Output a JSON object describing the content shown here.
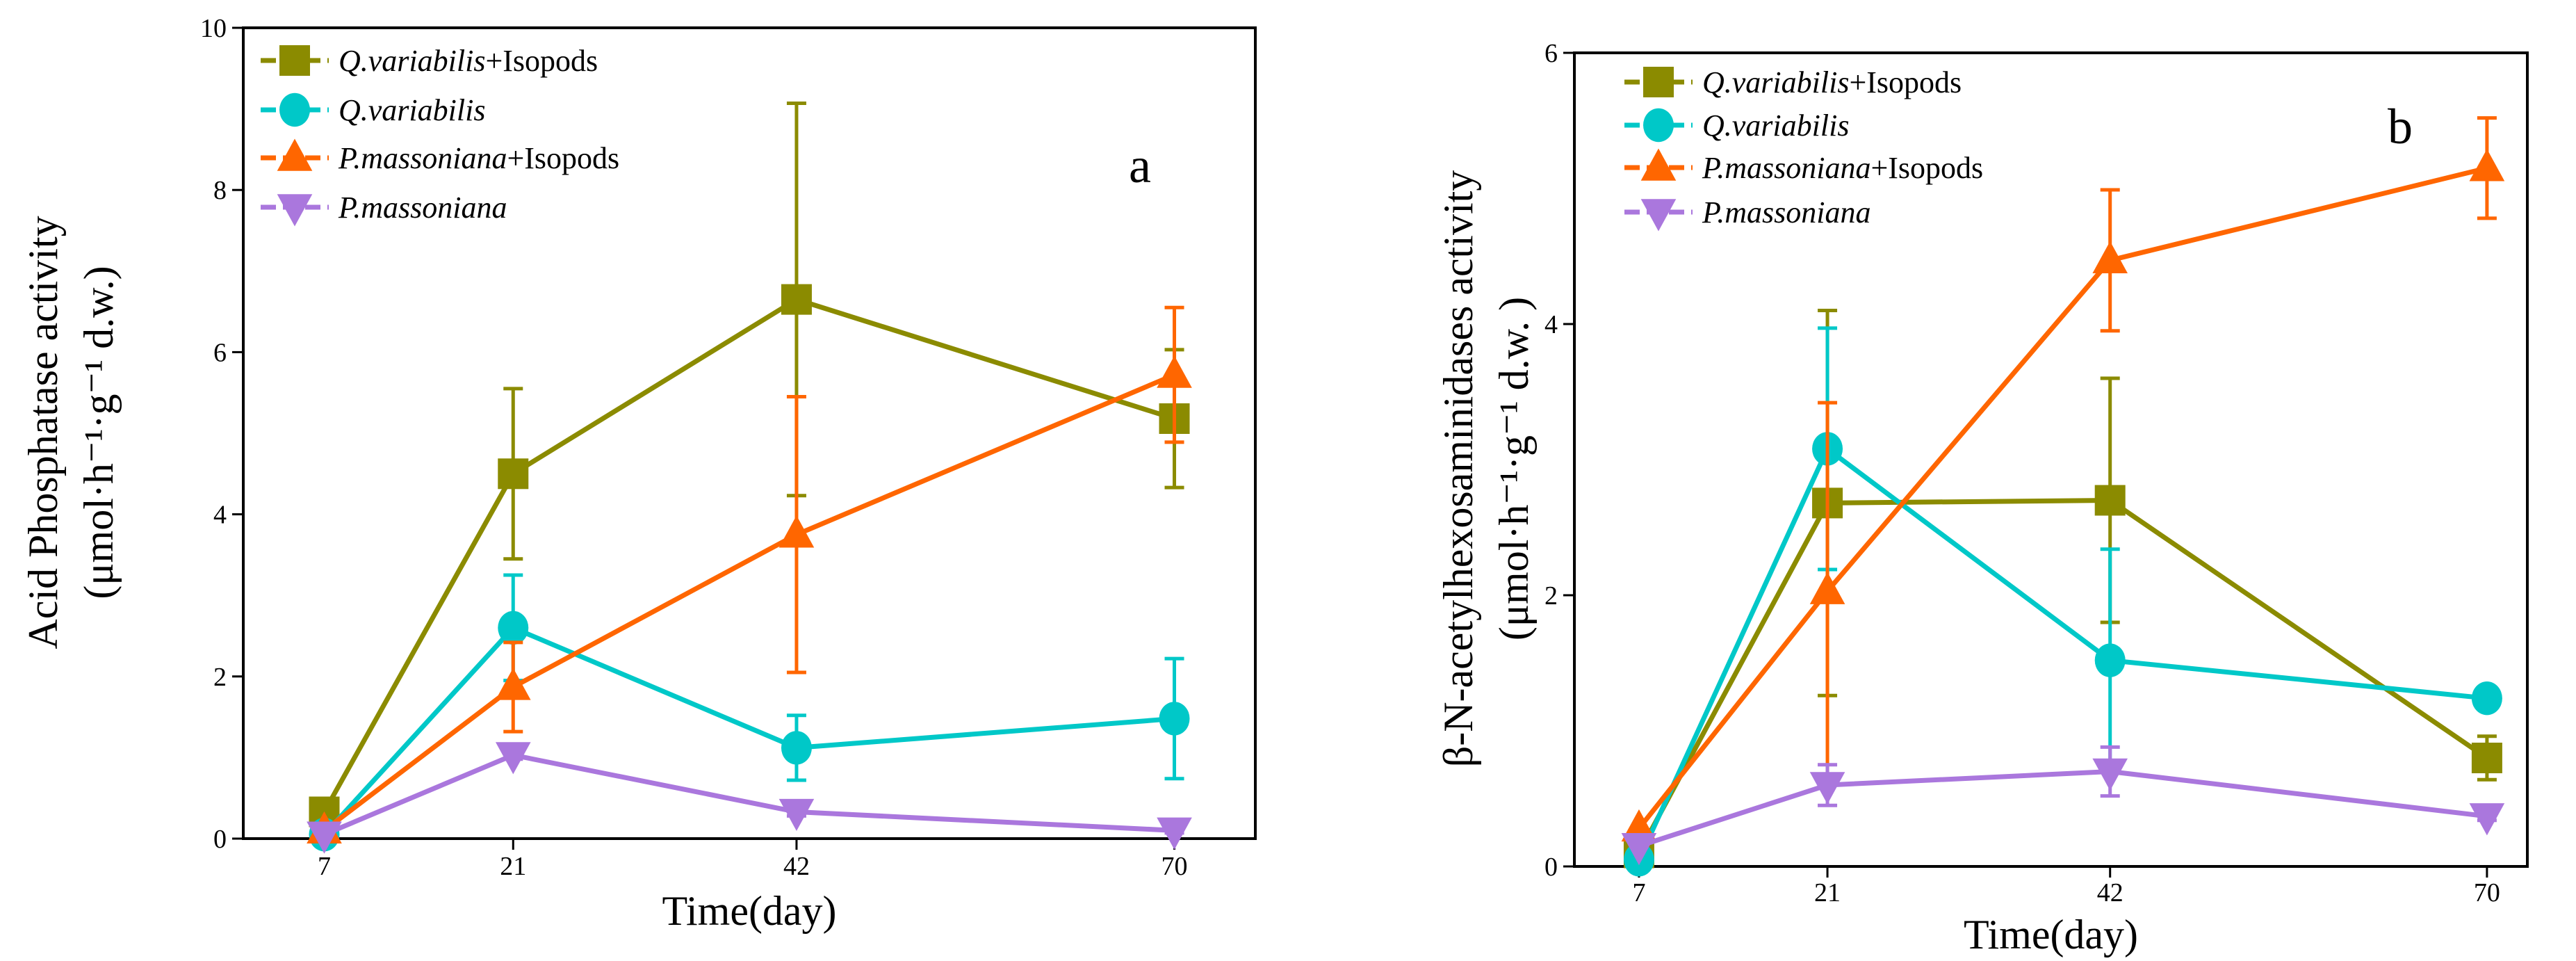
{
  "colors": {
    "qvi": "#8B8B00",
    "qv": "#00C8C8",
    "pmi": "#FF6600",
    "pm": "#AA77DD"
  },
  "chart_data": [
    {
      "type": "line",
      "panel_label": "a",
      "xlabel": "Time(day)",
      "ylabel": "Acid Phosphatase activity",
      "ylabel_units": "(μmol·h⁻¹·g⁻¹ d.w.)",
      "x": [
        7,
        21,
        42,
        70
      ],
      "x_tick_labels": [
        "7",
        "21",
        "42",
        "70"
      ],
      "xlim": [
        1,
        76
      ],
      "ylim": [
        0,
        10
      ],
      "y_ticks": [
        0,
        2,
        4,
        6,
        8,
        10
      ],
      "y_tick_labels": [
        "0",
        "2",
        "4",
        "6",
        "8",
        "10"
      ],
      "legend_position": "top-left",
      "series": [
        {
          "key": "qvi",
          "name_italic": "Q.variabilis",
          "name_suffix": "+Isopods",
          "marker": "square",
          "values": [
            0.33,
            4.5,
            6.65,
            5.18
          ],
          "err": [
            0.0,
            1.05,
            2.42,
            0.85
          ]
        },
        {
          "key": "qv",
          "name_italic": "Q.variabilis",
          "name_suffix": "",
          "marker": "circle",
          "values": [
            0.05,
            2.6,
            1.12,
            1.48
          ],
          "err": [
            0.0,
            0.65,
            0.4,
            0.74
          ]
        },
        {
          "key": "pmi",
          "name_italic": "P.massoniana",
          "name_suffix": "+Isopods",
          "marker": "triangle-up",
          "values": [
            0.1,
            1.87,
            3.75,
            5.72
          ],
          "err": [
            0.0,
            0.55,
            1.7,
            0.83
          ]
        },
        {
          "key": "pm",
          "name_italic": "P.massoniana",
          "name_suffix": "",
          "marker": "triangle-down",
          "values": [
            0.05,
            1.03,
            0.33,
            0.1
          ],
          "err": [
            0.0,
            0.05,
            0.05,
            0.03
          ]
        }
      ]
    },
    {
      "type": "line",
      "panel_label": "b",
      "xlabel": "Time(day)",
      "ylabel": "β-N-acetylhexosaminidases activity",
      "ylabel_units": "(μmol·h⁻¹·g⁻¹ d.w. )",
      "x": [
        7,
        21,
        42,
        70
      ],
      "x_tick_labels": [
        "7",
        "21",
        "42",
        "70"
      ],
      "xlim": [
        2.2,
        73
      ],
      "ylim": [
        0,
        6
      ],
      "y_ticks": [
        0,
        2,
        4,
        6
      ],
      "y_tick_labels": [
        "0",
        "2",
        "4",
        "6"
      ],
      "legend_position": "top-left",
      "series": [
        {
          "key": "qvi",
          "name_italic": "Q.variabilis",
          "name_suffix": "+Isopods",
          "marker": "square",
          "values": [
            0.1,
            2.68,
            2.7,
            0.8
          ],
          "err": [
            0.0,
            1.42,
            0.9,
            0.16
          ]
        },
        {
          "key": "qv",
          "name_italic": "Q.variabilis",
          "name_suffix": "",
          "marker": "circle",
          "values": [
            0.05,
            3.08,
            1.52,
            1.24
          ],
          "err": [
            0.0,
            0.89,
            0.82,
            0.03
          ]
        },
        {
          "key": "pmi",
          "name_italic": "P.massoniana",
          "name_suffix": "+Isopods",
          "marker": "triangle-up",
          "values": [
            0.28,
            2.03,
            4.47,
            5.15
          ],
          "err": [
            0.0,
            1.39,
            0.52,
            0.37
          ]
        },
        {
          "key": "pm",
          "name_italic": "P.massoniana",
          "name_suffix": "",
          "marker": "triangle-down",
          "values": [
            0.15,
            0.6,
            0.7,
            0.37
          ],
          "err": [
            0.0,
            0.15,
            0.18,
            0.03
          ]
        }
      ]
    }
  ]
}
